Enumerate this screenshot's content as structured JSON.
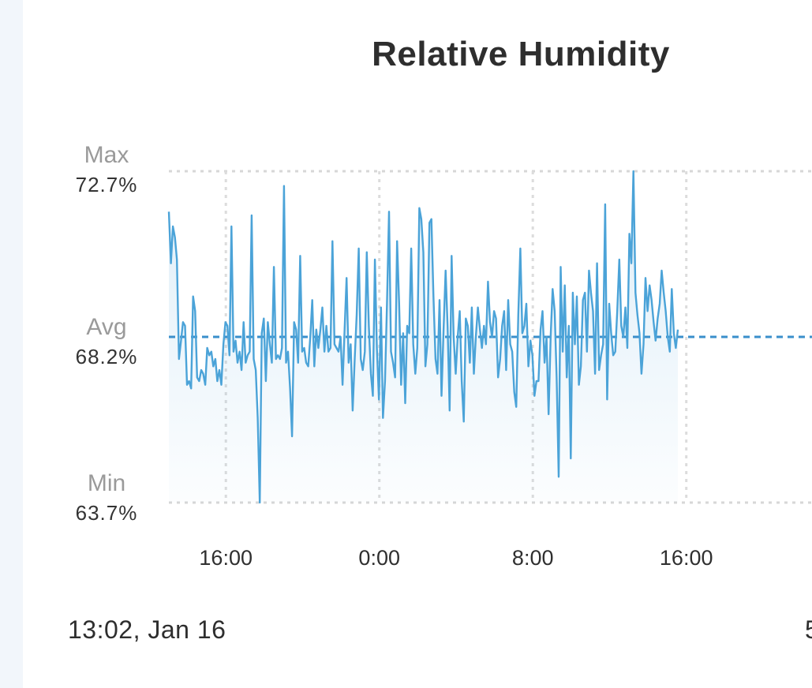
{
  "chart_data": {
    "type": "line",
    "title": "Relative Humidity",
    "unit": "%",
    "summary": {
      "max_label": "Max",
      "max": "72.7%",
      "avg_label": "Avg",
      "avg": "68.2%",
      "min_label": "Min",
      "min": "63.7%"
    },
    "ylim": [
      63.7,
      72.7
    ],
    "avg_value": 68.2,
    "xlim_hours": [
      13.03,
      21
    ],
    "x_ticks": [
      "16:00",
      "0:00",
      "8:00",
      "16:00"
    ],
    "grid": true,
    "series": [
      {
        "values": [
          71.6,
          70.2,
          71.2,
          70.9,
          70.3,
          67.6,
          68.1,
          68.6,
          68.5,
          66.9,
          67.0,
          66.8,
          69.3,
          68.9,
          67.1,
          67.0,
          67.3,
          67.2,
          66.9,
          67.9,
          67.7,
          67.8,
          67.4,
          67.6,
          67.0,
          67.3,
          66.9,
          68.0,
          68.6,
          68.5,
          67.7,
          71.2,
          67.8,
          68.1,
          67.5,
          67.8,
          67.3,
          68.6,
          67.5,
          67.7,
          67.8,
          71.5,
          67.6,
          67.3,
          66.0,
          63.7,
          68.3,
          68.7,
          67.0,
          68.6,
          68.0,
          67.5,
          70.1,
          67.6,
          67.7,
          67.6,
          67.9,
          72.3,
          67.5,
          67.8,
          66.8,
          65.5,
          68.6,
          68.4,
          67.5,
          70.4,
          67.8,
          67.9,
          67.5,
          67.4,
          68.2,
          69.2,
          67.4,
          68.4,
          67.9,
          68.4,
          69.0,
          67.8,
          68.5,
          67.8,
          67.9,
          70.8,
          68.0,
          67.9,
          67.8,
          68.2,
          66.9,
          68.4,
          69.8,
          67.5,
          68.0,
          66.2,
          67.6,
          68.8,
          70.6,
          67.6,
          67.3,
          67.8,
          70.5,
          68.5,
          67.2,
          66.6,
          70.3,
          67.9,
          66.5,
          69.0,
          66.0,
          67.0,
          69.1,
          71.6,
          67.8,
          67.5,
          67.1,
          70.8,
          69.1,
          66.9,
          68.3,
          66.4,
          68.5,
          68.3,
          70.6,
          68.0,
          67.2,
          67.9,
          71.7,
          71.4,
          70.5,
          67.4,
          68.0,
          71.3,
          71.4,
          69.3,
          67.6,
          67.2,
          69.2,
          66.6,
          68.4,
          70.0,
          68.5,
          66.2,
          70.4,
          68.2,
          67.2,
          68.2,
          68.9,
          67.0,
          65.9,
          68.7,
          68.5,
          67.5,
          69.0,
          67.2,
          68.2,
          69.0,
          68.4,
          67.9,
          68.5,
          68.0,
          69.7,
          68.6,
          68.2,
          68.9,
          68.7,
          67.1,
          67.6,
          68.5,
          68.9,
          67.3,
          69.2,
          68.0,
          67.8,
          66.7,
          66.3,
          68.8,
          70.6,
          68.3,
          68.5,
          69.1,
          67.4,
          68.1,
          67.7,
          66.6,
          67.0,
          67.0,
          68.4,
          68.9,
          67.5,
          68.2,
          66.1,
          68.2,
          69.5,
          68.9,
          67.1,
          64.4,
          70.1,
          67.8,
          69.6,
          67.1,
          68.5,
          64.9,
          69.4,
          68.0,
          69.3,
          66.9,
          67.4,
          69.2,
          69.4,
          67.8,
          70.0,
          69.4,
          68.9,
          67.2,
          70.2,
          67.3,
          67.7,
          68.0,
          71.8,
          66.5,
          69.1,
          68.3,
          67.7,
          67.8,
          68.9,
          70.3,
          68.5,
          68.2,
          69.0,
          67.9,
          71.0,
          70.2,
          72.7,
          69.4,
          68.8,
          68.3,
          67.2,
          68.0,
          69.8,
          68.9,
          69.6,
          69.2,
          68.6,
          68.1,
          68.7,
          69.1,
          70.0,
          69.4,
          68.9,
          68.2,
          67.8,
          69.5,
          68.3,
          67.9,
          68.4
        ]
      }
    ]
  },
  "footer": {
    "range_start": "13:02,  Jan 16",
    "range_end": "5"
  }
}
